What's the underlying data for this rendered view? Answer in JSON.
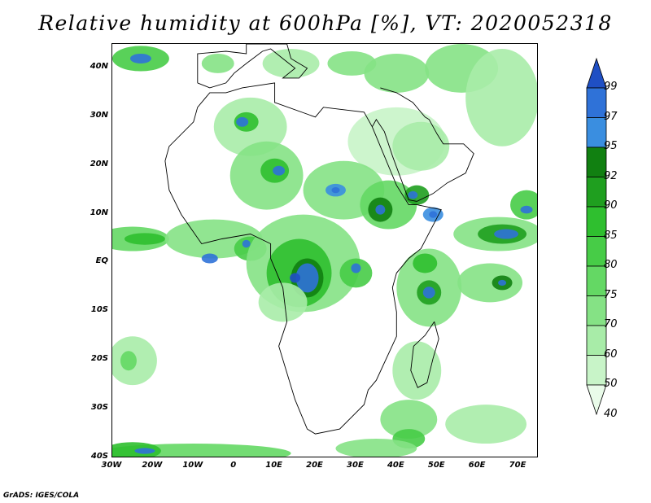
{
  "title": "Relative humidity at 600hPa [%], VT: 2020052318",
  "footer": "GrADS: IGES/COLA",
  "map": {
    "lon_range": [
      -30,
      75
    ],
    "lat_range": [
      -40,
      45
    ],
    "lat_ticks": [
      {
        "value": 40,
        "label": "40N"
      },
      {
        "value": 30,
        "label": "30N"
      },
      {
        "value": 20,
        "label": "20N"
      },
      {
        "value": 10,
        "label": "10N"
      },
      {
        "value": 0,
        "label": "EQ"
      },
      {
        "value": -10,
        "label": "10S"
      },
      {
        "value": -20,
        "label": "20S"
      },
      {
        "value": -30,
        "label": "30S"
      },
      {
        "value": -40,
        "label": "40S"
      }
    ],
    "lon_ticks": [
      {
        "value": -30,
        "label": "30W"
      },
      {
        "value": -20,
        "label": "20W"
      },
      {
        "value": -10,
        "label": "10W"
      },
      {
        "value": 0,
        "label": "0"
      },
      {
        "value": 10,
        "label": "10E"
      },
      {
        "value": 20,
        "label": "20E"
      },
      {
        "value": 30,
        "label": "30E"
      },
      {
        "value": 40,
        "label": "40E"
      },
      {
        "value": 50,
        "label": "50E"
      },
      {
        "value": 60,
        "label": "60E"
      },
      {
        "value": 70,
        "label": "70E"
      }
    ],
    "coastline": [
      [
        -17,
        21
      ],
      [
        -16,
        15
      ],
      [
        -13,
        10
      ],
      [
        -8,
        4
      ],
      [
        -3,
        5
      ],
      [
        4,
        6
      ],
      [
        9,
        4
      ],
      [
        9,
        1
      ],
      [
        12,
        -5
      ],
      [
        13,
        -12
      ],
      [
        11,
        -17
      ],
      [
        15,
        -28
      ],
      [
        18,
        -34
      ],
      [
        20,
        -35
      ],
      [
        26,
        -34
      ],
      [
        32,
        -29
      ],
      [
        33,
        -26
      ],
      [
        35,
        -24
      ],
      [
        40,
        -15
      ],
      [
        40,
        -10
      ],
      [
        39,
        -5
      ],
      [
        40,
        -2
      ],
      [
        43,
        1
      ],
      [
        46,
        3
      ],
      [
        51,
        11
      ],
      [
        45,
        12
      ],
      [
        43,
        12
      ],
      [
        40,
        16
      ],
      [
        34,
        28
      ],
      [
        32,
        31
      ],
      [
        22,
        32
      ],
      [
        20,
        30
      ],
      [
        10,
        33
      ],
      [
        10,
        37
      ],
      [
        2,
        36
      ],
      [
        -2,
        35
      ],
      [
        -6,
        35
      ],
      [
        -9,
        32
      ],
      [
        -10,
        29
      ],
      [
        -16,
        24
      ],
      [
        -17,
        21
      ]
    ],
    "madagascar": [
      [
        49.3,
        -12
      ],
      [
        50.4,
        -15.5
      ],
      [
        49,
        -19.5
      ],
      [
        47.5,
        -24.5
      ],
      [
        45.2,
        -25.5
      ],
      [
        43.5,
        -22
      ],
      [
        44.2,
        -17
      ],
      [
        47,
        -14.8
      ],
      [
        49.3,
        -12
      ]
    ],
    "arabia": [
      [
        34,
        28
      ],
      [
        35,
        29.5
      ],
      [
        37,
        27
      ],
      [
        39,
        22
      ],
      [
        43,
        13
      ],
      [
        45,
        12.7
      ],
      [
        49,
        14.3
      ],
      [
        52.5,
        16.5
      ],
      [
        57,
        18.5
      ],
      [
        59,
        22.5
      ],
      [
        56.5,
        24.5
      ],
      [
        51.5,
        24.5
      ],
      [
        50,
        26.5
      ],
      [
        48,
        29.5
      ],
      [
        47,
        30
      ],
      [
        44,
        33
      ],
      [
        40,
        35
      ],
      [
        36,
        36
      ]
    ],
    "europe": [
      [
        -9,
        37
      ],
      [
        -9,
        43
      ],
      [
        -2,
        43.5
      ],
      [
        3,
        43
      ],
      [
        3,
        45
      ],
      [
        10,
        45
      ],
      [
        13,
        45
      ],
      [
        14,
        42
      ],
      [
        16,
        41
      ],
      [
        18,
        40
      ],
      [
        16,
        38
      ],
      [
        12,
        38
      ],
      [
        15,
        40
      ],
      [
        12,
        42
      ],
      [
        9,
        44
      ],
      [
        7,
        43.5
      ],
      [
        3,
        41
      ],
      [
        0,
        39
      ],
      [
        -2,
        37
      ],
      [
        -6,
        36
      ],
      [
        -9,
        37
      ]
    ]
  },
  "chart_data": {
    "type": "heatmap",
    "title": "Relative humidity at 600hPa [%], VT: 2020052318",
    "variable": "Relative humidity at 600hPa",
    "units": "%",
    "valid_time": "2020052318",
    "xlim": [
      -30,
      75
    ],
    "ylim": [
      -40,
      45
    ],
    "color_levels": [
      40,
      50,
      60,
      70,
      75,
      80,
      85,
      90,
      92,
      95,
      97,
      99
    ],
    "level_colors": [
      "#e9fbe9",
      "#c8f4c8",
      "#a8eca8",
      "#85e285",
      "#64d864",
      "#47cc47",
      "#2fbf2f",
      "#1f9f1f",
      "#118011",
      "#3a8ee0",
      "#2f72d8",
      "#1f4fc4"
    ],
    "colorbar_labels": [
      "99",
      "97",
      "95",
      "92",
      "90",
      "85",
      "80",
      "75",
      "70",
      "60",
      "50",
      "40"
    ],
    "humid_regions": [
      {
        "lon": -23,
        "lat": 42,
        "rx": 7,
        "ry": 2.6,
        "level": 5
      },
      {
        "lon": -23,
        "lat": 42,
        "rx": 2.6,
        "ry": 1,
        "level": 10
      },
      {
        "lon": -4,
        "lat": 41,
        "rx": 4,
        "ry": 2,
        "level": 3
      },
      {
        "lon": 14,
        "lat": 41,
        "rx": 7,
        "ry": 3,
        "level": 2
      },
      {
        "lon": 29,
        "lat": 41,
        "rx": 6,
        "ry": 2.5,
        "level": 3
      },
      {
        "lon": 40,
        "lat": 39,
        "rx": 8,
        "ry": 4,
        "level": 3
      },
      {
        "lon": 56,
        "lat": 40,
        "rx": 9,
        "ry": 5,
        "level": 3
      },
      {
        "lon": 66,
        "lat": 34,
        "rx": 9,
        "ry": 10,
        "level": 2
      },
      {
        "lon": 4,
        "lat": 28,
        "rx": 9,
        "ry": 6,
        "level": 2
      },
      {
        "lon": 3,
        "lat": 29,
        "rx": 3,
        "ry": 2,
        "level": 6
      },
      {
        "lon": 2,
        "lat": 29,
        "rx": 1.5,
        "ry": 1,
        "level": 10
      },
      {
        "lon": 40,
        "lat": 25,
        "rx": 12,
        "ry": 7,
        "level": 1
      },
      {
        "lon": 46,
        "lat": 24,
        "rx": 7,
        "ry": 5,
        "level": 2
      },
      {
        "lon": 8,
        "lat": 18,
        "rx": 9,
        "ry": 7,
        "level": 3
      },
      {
        "lon": 10,
        "lat": 19,
        "rx": 3.5,
        "ry": 2.5,
        "level": 6
      },
      {
        "lon": 11,
        "lat": 19,
        "rx": 1.5,
        "ry": 1,
        "level": 10
      },
      {
        "lon": 27,
        "lat": 15,
        "rx": 10,
        "ry": 6,
        "level": 3
      },
      {
        "lon": 25,
        "lat": 15,
        "rx": 2.5,
        "ry": 1.3,
        "level": 9
      },
      {
        "lon": 25,
        "lat": 15,
        "rx": 1,
        "ry": 0.6,
        "level": 10
      },
      {
        "lon": 38,
        "lat": 12,
        "rx": 7,
        "ry": 5,
        "level": 4
      },
      {
        "lon": 36,
        "lat": 11,
        "rx": 3,
        "ry": 2.5,
        "level": 8
      },
      {
        "lon": 36,
        "lat": 11,
        "rx": 1.2,
        "ry": 1,
        "level": 10
      },
      {
        "lon": 45,
        "lat": 14,
        "rx": 3,
        "ry": 2,
        "level": 7
      },
      {
        "lon": 44,
        "lat": 14,
        "rx": 1.2,
        "ry": 0.8,
        "level": 10
      },
      {
        "lon": 49,
        "lat": 10,
        "rx": 2.5,
        "ry": 1.5,
        "level": 9
      },
      {
        "lon": 49,
        "lat": 10,
        "rx": 1,
        "ry": 0.7,
        "level": 10
      },
      {
        "lon": -25,
        "lat": 5,
        "rx": 9,
        "ry": 2.5,
        "level": 4
      },
      {
        "lon": -22,
        "lat": 5,
        "rx": 5,
        "ry": 1.2,
        "level": 6
      },
      {
        "lon": -5,
        "lat": 5,
        "rx": 12,
        "ry": 4,
        "level": 3
      },
      {
        "lon": -6,
        "lat": 1,
        "rx": 2,
        "ry": 1,
        "level": 10
      },
      {
        "lon": 4,
        "lat": 3,
        "rx": 4,
        "ry": 2.5,
        "level": 5
      },
      {
        "lon": 3,
        "lat": 4,
        "rx": 1,
        "ry": 0.8,
        "level": 10
      },
      {
        "lon": 17,
        "lat": 0,
        "rx": 14,
        "ry": 10,
        "level": 3
      },
      {
        "lon": 16,
        "lat": -2,
        "rx": 8,
        "ry": 7,
        "level": 6
      },
      {
        "lon": 18,
        "lat": -3,
        "rx": 4,
        "ry": 4,
        "level": 8
      },
      {
        "lon": 18,
        "lat": -3,
        "rx": 2.8,
        "ry": 3,
        "level": 10
      },
      {
        "lon": 15,
        "lat": -3,
        "rx": 1.3,
        "ry": 1,
        "level": 11
      },
      {
        "lon": 30,
        "lat": -2,
        "rx": 4,
        "ry": 3,
        "level": 5
      },
      {
        "lon": 30,
        "lat": -1,
        "rx": 1.2,
        "ry": 1,
        "level": 10
      },
      {
        "lon": 12,
        "lat": -8,
        "rx": 6,
        "ry": 4,
        "level": 2
      },
      {
        "lon": 48,
        "lat": -5,
        "rx": 8,
        "ry": 8,
        "level": 3
      },
      {
        "lon": 47,
        "lat": 0,
        "rx": 3,
        "ry": 2,
        "level": 6
      },
      {
        "lon": 48,
        "lat": -6,
        "rx": 3,
        "ry": 2.5,
        "level": 7
      },
      {
        "lon": 48,
        "lat": -6,
        "rx": 1.5,
        "ry": 1.2,
        "level": 10
      },
      {
        "lon": 63,
        "lat": -4,
        "rx": 8,
        "ry": 4,
        "level": 3
      },
      {
        "lon": 66,
        "lat": -4,
        "rx": 2.5,
        "ry": 1.5,
        "level": 8
      },
      {
        "lon": 66,
        "lat": -4,
        "rx": 1,
        "ry": 0.6,
        "level": 10
      },
      {
        "lon": 65,
        "lat": 6,
        "rx": 11,
        "ry": 3.5,
        "level": 3
      },
      {
        "lon": 66,
        "lat": 6,
        "rx": 6,
        "ry": 2,
        "level": 7
      },
      {
        "lon": 67,
        "lat": 6,
        "rx": 3,
        "ry": 1,
        "level": 10
      },
      {
        "lon": 72,
        "lat": 12,
        "rx": 4,
        "ry": 3,
        "level": 5
      },
      {
        "lon": 72,
        "lat": 11,
        "rx": 1.5,
        "ry": 0.8,
        "level": 10
      },
      {
        "lon": -25,
        "lat": -20,
        "rx": 6,
        "ry": 5,
        "level": 2
      },
      {
        "lon": -26,
        "lat": -20,
        "rx": 2,
        "ry": 2,
        "level": 4
      },
      {
        "lon": 45,
        "lat": -22,
        "rx": 6,
        "ry": 6,
        "level": 2
      },
      {
        "lon": 43,
        "lat": -32,
        "rx": 7,
        "ry": 4,
        "level": 3
      },
      {
        "lon": 43,
        "lat": -36,
        "rx": 4,
        "ry": 2,
        "level": 5
      },
      {
        "lon": 62,
        "lat": -33,
        "rx": 10,
        "ry": 4,
        "level": 2
      },
      {
        "lon": -10,
        "lat": -39,
        "rx": 24,
        "ry": 2,
        "level": 4
      },
      {
        "lon": -25,
        "lat": -38.5,
        "rx": 7,
        "ry": 1.8,
        "level": 6
      },
      {
        "lon": -22,
        "lat": -38.5,
        "rx": 2.5,
        "ry": 0.6,
        "level": 10
      },
      {
        "lon": 35,
        "lat": -38,
        "rx": 10,
        "ry": 2,
        "level": 3
      }
    ]
  }
}
